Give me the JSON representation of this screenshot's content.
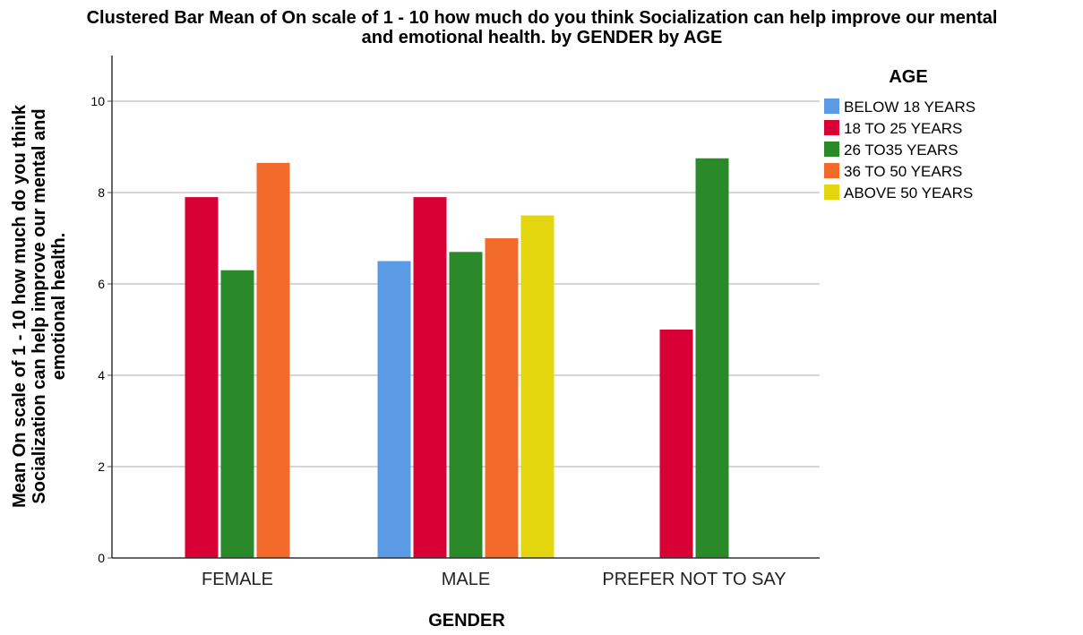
{
  "chart_data": {
    "type": "bar",
    "title": "Clustered Bar Mean of On scale of 1 - 10 how much do you think  Socialization can help improve our mental and emotional health. by GENDER by AGE",
    "title_lines": [
      "Clustered Bar Mean of On scale of 1 - 10 how much do you think  Socialization can help improve our mental",
      "and emotional health. by GENDER by AGE"
    ],
    "xlabel": "GENDER",
    "ylabel": "Mean On scale of 1 - 10 how much do you think Socialization can help improve our mental and emotional health.",
    "ylabel_lines": [
      "Mean On scale of 1 - 10 how much do you think",
      "Socialization can help improve our mental and",
      "emotional health."
    ],
    "categories": [
      "FEMALE",
      "MALE",
      "PREFER NOT TO SAY"
    ],
    "ylim": [
      0,
      11
    ],
    "yticks": [
      0,
      2,
      4,
      6,
      8,
      10
    ],
    "grid": true,
    "legend_title": "AGE",
    "legend_position": "top-right",
    "series": [
      {
        "name": "BELOW 18 YEARS",
        "color": "#5b9be6",
        "values": [
          null,
          6.5,
          null
        ]
      },
      {
        "name": "18 TO 25 YEARS",
        "color": "#d90036",
        "values": [
          7.9,
          7.9,
          5.0
        ]
      },
      {
        "name": "26 TO35 YEARS",
        "color": "#2a8a2a",
        "values": [
          6.3,
          6.7,
          8.75
        ]
      },
      {
        "name": "36 TO 50 YEARS",
        "color": "#f26b2b",
        "values": [
          8.65,
          7.0,
          null
        ]
      },
      {
        "name": "ABOVE 50 YEARS",
        "color": "#e3d60f",
        "values": [
          null,
          7.5,
          null
        ]
      }
    ]
  }
}
